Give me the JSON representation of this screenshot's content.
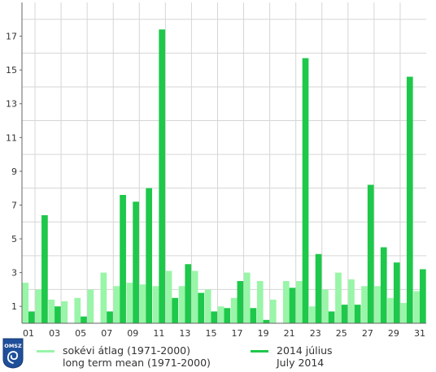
{
  "chart_data": {
    "type": "bar",
    "categories": [
      "01",
      "02",
      "03",
      "04",
      "05",
      "06",
      "07",
      "08",
      "09",
      "10",
      "11",
      "12",
      "13",
      "14",
      "15",
      "16",
      "17",
      "18",
      "19",
      "20",
      "21",
      "22",
      "23",
      "24",
      "25",
      "26",
      "27",
      "28",
      "29",
      "30",
      "31"
    ],
    "x_tick_labels": [
      "01",
      "03",
      "05",
      "07",
      "09",
      "11",
      "13",
      "15",
      "17",
      "19",
      "21",
      "23",
      "25",
      "27",
      "29",
      "31"
    ],
    "y_tick_labels": [
      "1",
      "3",
      "5",
      "7",
      "9",
      "11",
      "13",
      "15",
      "17"
    ],
    "y_ticks": [
      1,
      3,
      5,
      7,
      9,
      11,
      13,
      15,
      17
    ],
    "ylim": [
      0,
      19
    ],
    "grid": true,
    "legend_position": "bottom",
    "series": [
      {
        "name": "long term mean (1971-2000)",
        "name_hu": "sokévi átlag (1971-2000)",
        "color": "#99f5a8",
        "values": [
          2.4,
          2.0,
          1.4,
          1.3,
          1.5,
          2.0,
          3.0,
          2.2,
          2.4,
          2.3,
          2.2,
          3.1,
          2.2,
          3.1,
          2.0,
          1.0,
          1.5,
          3.0,
          2.5,
          1.4,
          2.5,
          2.5,
          1.0,
          2.0,
          3.0,
          2.6,
          2.2,
          2.2,
          1.5,
          1.2,
          1.9
        ]
      },
      {
        "name": "July 2014",
        "name_hu": "2014 július",
        "color": "#1ec84a",
        "values": [
          0.7,
          6.4,
          1.0,
          0.0,
          0.4,
          0.0,
          0.7,
          7.6,
          7.2,
          8.0,
          17.4,
          1.5,
          3.5,
          1.8,
          0.7,
          0.9,
          2.5,
          0.9,
          0.2,
          0.0,
          2.1,
          15.7,
          4.1,
          0.7,
          1.1,
          1.1,
          8.2,
          4.5,
          3.6,
          14.6,
          3.2
        ]
      }
    ]
  },
  "logo": {
    "text": "OMSZ"
  }
}
